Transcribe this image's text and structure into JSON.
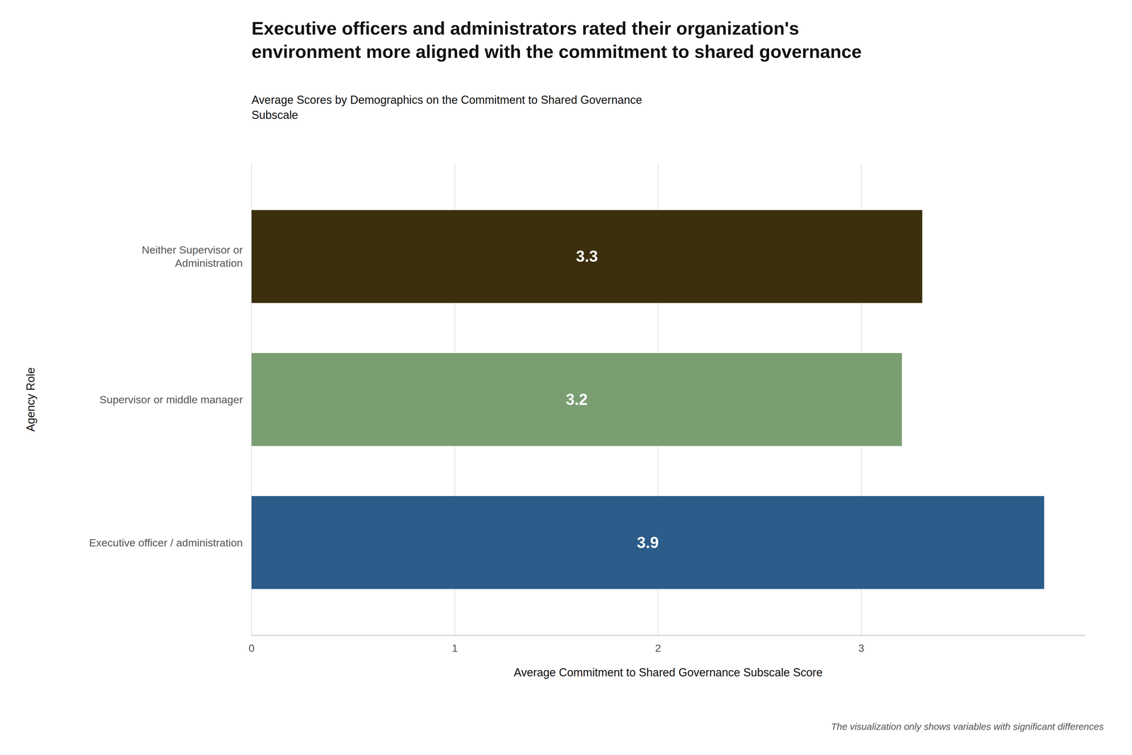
{
  "chart_data": {
    "type": "bar",
    "orientation": "horizontal",
    "title": "Executive officers and administrators rated their organization's\nenvironment more aligned with the commitment to shared governance",
    "subtitle": "Average Scores by Demographics on the Commitment to Shared Governance\nSubscale",
    "xlabel": "Average Commitment to Shared Governance Subscale Score",
    "ylabel": "Agency Role",
    "categories": [
      "Executive officer / administration",
      "Supervisor or middle manager",
      "Neither Supervisor or\nAdministration"
    ],
    "values": [
      3.9,
      3.2,
      3.3
    ],
    "colors": [
      "#2b5c8a",
      "#7a9e72",
      "#3b2f0e"
    ],
    "xlim": [
      0,
      4.1
    ],
    "xticks": [
      0,
      1,
      2,
      3
    ],
    "grid": true,
    "data_labels": true,
    "annotations": [
      "The visualization only shows variables with significant differences"
    ]
  }
}
